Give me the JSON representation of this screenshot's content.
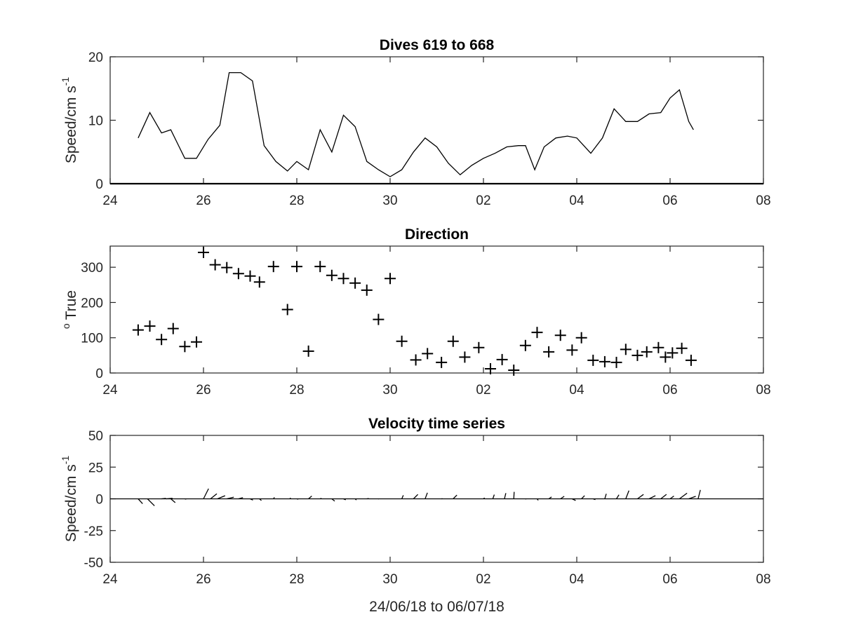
{
  "x_axis": {
    "ticks": [
      "24",
      "26",
      "28",
      "30",
      "02",
      "04",
      "06",
      "08"
    ],
    "xlim_days": [
      0,
      14
    ],
    "xlabel": "24/06/18 to 06/07/18"
  },
  "chart_data": [
    {
      "type": "line",
      "title": "Dives 619 to 668",
      "ylabel_main": "Speed/cm s",
      "ylabel_sup": "-1",
      "ylim": [
        0,
        20
      ],
      "yticks": [
        "0",
        "10",
        "20"
      ],
      "baseline": 0,
      "series": [
        {
          "values": [
            [
              0.6,
              7.2
            ],
            [
              0.85,
              11.2
            ],
            [
              1.1,
              8
            ],
            [
              1.3,
              8.5
            ],
            [
              1.6,
              4
            ],
            [
              1.85,
              4
            ],
            [
              2.1,
              7
            ],
            [
              2.35,
              9.2
            ],
            [
              2.55,
              17.5
            ],
            [
              2.8,
              17.5
            ],
            [
              3.05,
              16.2
            ],
            [
              3.3,
              6
            ],
            [
              3.55,
              3.5
            ],
            [
              3.8,
              2
            ],
            [
              4.0,
              3.5
            ],
            [
              4.25,
              2.2
            ],
            [
              4.5,
              8.5
            ],
            [
              4.75,
              5
            ],
            [
              5.0,
              10.8
            ],
            [
              5.25,
              9
            ],
            [
              5.5,
              3.5
            ],
            [
              5.75,
              2.2
            ],
            [
              6.0,
              1.1
            ],
            [
              6.25,
              2.2
            ],
            [
              6.5,
              5
            ],
            [
              6.75,
              7.2
            ],
            [
              7.0,
              5.8
            ],
            [
              7.25,
              3.2
            ],
            [
              7.5,
              1.4
            ],
            [
              7.75,
              2.9
            ],
            [
              8.0,
              4
            ],
            [
              8.25,
              4.8
            ],
            [
              8.5,
              5.8
            ],
            [
              8.75,
              6
            ],
            [
              8.9,
              6
            ],
            [
              9.1,
              2.2
            ],
            [
              9.3,
              5.8
            ],
            [
              9.55,
              7.2
            ],
            [
              9.8,
              7.5
            ],
            [
              10.0,
              7.2
            ],
            [
              10.3,
              4.8
            ],
            [
              10.55,
              7.2
            ],
            [
              10.8,
              11.8
            ],
            [
              11.05,
              9.8
            ],
            [
              11.3,
              9.8
            ],
            [
              11.55,
              11
            ],
            [
              11.8,
              11.2
            ],
            [
              12.0,
              13.5
            ],
            [
              12.2,
              14.8
            ],
            [
              12.4,
              9.8
            ],
            [
              12.5,
              8.5
            ]
          ]
        }
      ]
    },
    {
      "type": "scatter",
      "title": "Direction",
      "ylabel_main": "True",
      "ylabel_pre": "o",
      "ylim": [
        0,
        360
      ],
      "yticks": [
        "0",
        "100",
        "200",
        "300"
      ],
      "series": [
        {
          "values": [
            [
              0.6,
              122
            ],
            [
              0.85,
              133
            ],
            [
              1.1,
              95
            ],
            [
              1.35,
              126
            ],
            [
              1.6,
              75
            ],
            [
              1.85,
              88
            ],
            [
              2.0,
              342
            ],
            [
              2.25,
              307
            ],
            [
              2.5,
              299
            ],
            [
              2.75,
              282
            ],
            [
              3.0,
              275
            ],
            [
              3.2,
              258
            ],
            [
              3.5,
              302
            ],
            [
              3.8,
              180
            ],
            [
              4.0,
              302
            ],
            [
              4.25,
              62
            ],
            [
              4.5,
              302
            ],
            [
              4.75,
              277
            ],
            [
              5.0,
              268
            ],
            [
              5.25,
              255
            ],
            [
              5.5,
              235
            ],
            [
              5.75,
              152
            ],
            [
              6.0,
              268
            ],
            [
              6.25,
              90
            ],
            [
              6.55,
              37
            ],
            [
              6.8,
              55
            ],
            [
              7.1,
              30
            ],
            [
              7.35,
              90
            ],
            [
              7.6,
              45
            ],
            [
              7.9,
              72
            ],
            [
              8.15,
              12
            ],
            [
              8.4,
              38
            ],
            [
              8.65,
              8
            ],
            [
              8.9,
              78
            ],
            [
              9.15,
              115
            ],
            [
              9.4,
              60
            ],
            [
              9.65,
              107
            ],
            [
              9.9,
              65
            ],
            [
              10.1,
              100
            ],
            [
              10.35,
              36
            ],
            [
              10.6,
              32
            ],
            [
              10.85,
              30
            ],
            [
              11.05,
              67
            ],
            [
              11.3,
              50
            ],
            [
              11.5,
              60
            ],
            [
              11.75,
              72
            ],
            [
              11.9,
              45
            ],
            [
              12.05,
              57
            ],
            [
              12.25,
              70
            ],
            [
              12.45,
              36
            ]
          ]
        }
      ]
    },
    {
      "type": "quiver",
      "title": "Velocity time series",
      "ylabel_main": "Speed/cm s",
      "ylabel_sup": "-1",
      "ylim": [
        -50,
        50
      ],
      "yticks": [
        "50",
        "25",
        "0",
        "-25",
        "-50"
      ],
      "series": [
        {
          "values": [
            [
              0.6,
              3.5,
              -3.8
            ],
            [
              0.8,
              5.5,
              -5.5
            ],
            [
              1.1,
              3.5,
              0.4
            ],
            [
              1.2,
              5,
              0.5
            ],
            [
              1.3,
              3.5,
              -3
            ],
            [
              1.6,
              1.1,
              -0.3
            ],
            [
              2.0,
              4,
              8
            ],
            [
              2.15,
              5,
              4
            ],
            [
              2.3,
              6,
              2.5
            ],
            [
              2.5,
              5.5,
              1.3
            ],
            [
              2.75,
              3.5,
              1
            ],
            [
              3.0,
              2.2,
              -1
            ],
            [
              3.2,
              1.5,
              -1.3
            ],
            [
              3.5,
              0.8,
              1.2
            ],
            [
              3.85,
              0.7,
              0.7
            ],
            [
              4.0,
              1.2,
              -0.3
            ],
            [
              4.25,
              2.6,
              2.2
            ],
            [
              4.5,
              1.1,
              0.4
            ],
            [
              4.75,
              2.3,
              -1.8
            ],
            [
              5.0,
              1.8,
              -0.8
            ],
            [
              5.25,
              1,
              -0.9
            ],
            [
              5.5,
              1.6,
              0.3
            ],
            [
              5.75,
              0.3,
              -0.2
            ],
            [
              6.25,
              1.2,
              2.8
            ],
            [
              6.5,
              3.5,
              3.5
            ],
            [
              6.75,
              1.8,
              4.8
            ],
            [
              7.1,
              0.8,
              0.1
            ],
            [
              7.35,
              3,
              3
            ],
            [
              8.0,
              0.9,
              0.8
            ],
            [
              8.2,
              1.2,
              3.3
            ],
            [
              8.45,
              1.1,
              4.5
            ],
            [
              8.65,
              0.3,
              5.5
            ],
            [
              8.9,
              0.6,
              -0.2
            ],
            [
              9.15,
              0.9,
              -1.2
            ],
            [
              9.4,
              2.2,
              1.5
            ],
            [
              9.65,
              3,
              2
            ],
            [
              9.9,
              2.8,
              -1.3
            ],
            [
              10.1,
              2.5,
              2.5
            ],
            [
              10.35,
              1.8,
              -0.6
            ],
            [
              10.6,
              1.2,
              4
            ],
            [
              10.85,
              2,
              3.2
            ],
            [
              11.05,
              2.5,
              6.5
            ],
            [
              11.3,
              4.8,
              3.5
            ],
            [
              11.55,
              5,
              2.5
            ],
            [
              11.8,
              4.5,
              3.5
            ],
            [
              12.0,
              3,
              2.2
            ],
            [
              12.2,
              6,
              4.5
            ],
            [
              12.4,
              5.5,
              2
            ],
            [
              12.6,
              1.8,
              7
            ]
          ]
        }
      ]
    }
  ]
}
